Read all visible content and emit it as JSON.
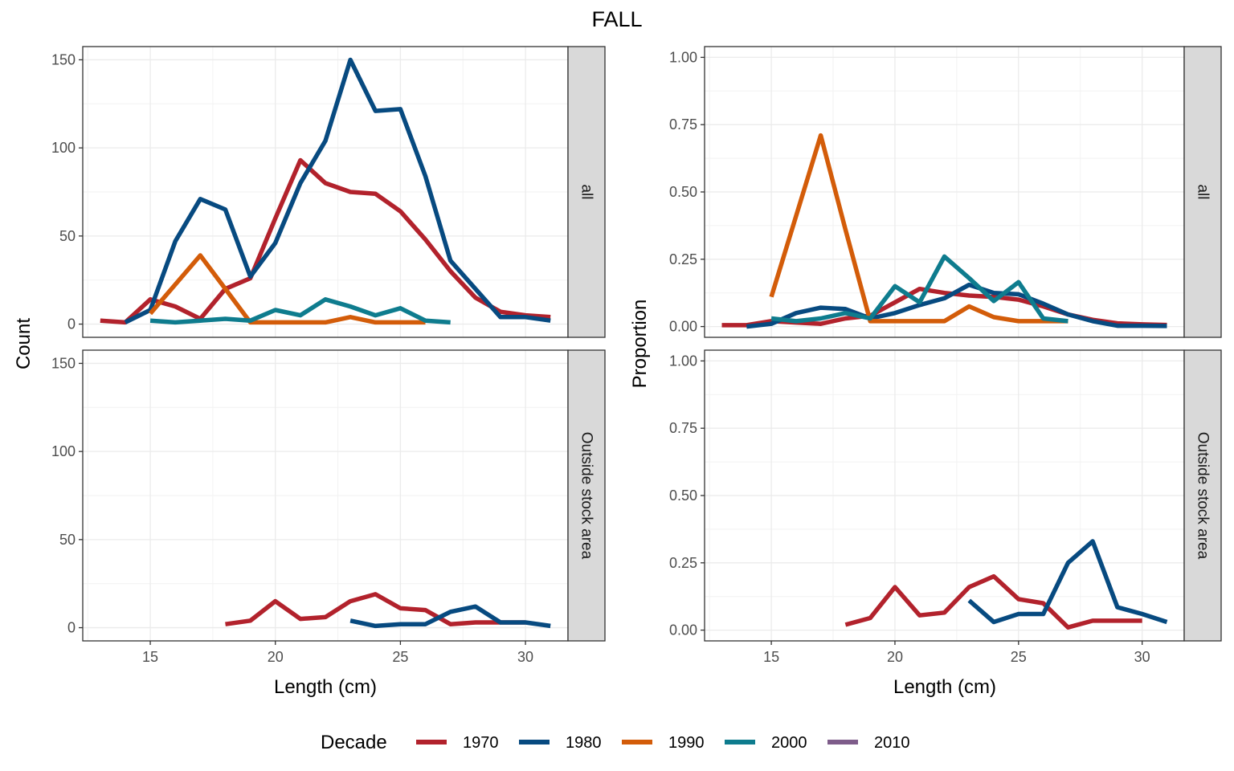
{
  "chart_data": {
    "type": "line",
    "title": "FALL",
    "facet_rows": [
      "all",
      "Outside stock area"
    ],
    "legend": {
      "title": "Decade",
      "position": "bottom",
      "entries": [
        {
          "name": "1970",
          "color": "#B2222C"
        },
        {
          "name": "1980",
          "color": "#074A80"
        },
        {
          "name": "1990",
          "color": "#D35C09"
        },
        {
          "name": "2000",
          "color": "#0E7C8E"
        },
        {
          "name": "2010",
          "color": "#7E5C8A"
        }
      ]
    },
    "panels": [
      {
        "id": "count",
        "xlabel": "Length (cm)",
        "ylabel": "Count",
        "xlim": [
          12.3,
          31.7
        ],
        "ylim": [
          -7.5,
          157.5
        ],
        "xticks": [
          "15",
          "20",
          "25",
          "30"
        ],
        "yticks": [
          "0",
          "50",
          "100",
          "150"
        ],
        "facets": {
          "all": [
            {
              "name": "1970",
              "x": [
                13,
                14,
                15,
                16,
                17,
                18,
                19,
                20,
                21,
                22,
                23,
                24,
                25,
                26,
                27,
                28,
                29,
                30,
                31
              ],
              "y": [
                2,
                1,
                14,
                10,
                3,
                20,
                26,
                60,
                93,
                80,
                75,
                74,
                64,
                48,
                30,
                15,
                7,
                5,
                4
              ]
            },
            {
              "name": "1980",
              "x": [
                14,
                15,
                16,
                17,
                18,
                19,
                20,
                21,
                22,
                23,
                24,
                25,
                26,
                27,
                28,
                29,
                30,
                31
              ],
              "y": [
                1,
                8,
                47,
                71,
                65,
                27,
                46,
                80,
                104,
                150,
                121,
                122,
                84,
                36,
                20,
                4,
                4,
                2
              ]
            },
            {
              "name": "1990",
              "x": [
                15,
                17,
                18,
                19,
                20,
                21,
                22,
                23,
                24,
                25,
                26
              ],
              "y": [
                6,
                39,
                20,
                1,
                1,
                1,
                1,
                4,
                1,
                1,
                1
              ]
            },
            {
              "name": "2000",
              "x": [
                15,
                16,
                17,
                18,
                19,
                20,
                21,
                22,
                23,
                24,
                25,
                26,
                27
              ],
              "y": [
                2,
                1,
                2,
                3,
                2,
                8,
                5,
                14,
                10,
                5,
                9,
                2,
                1
              ]
            }
          ],
          "Outside stock area": [
            {
              "name": "1970",
              "x": [
                18,
                19,
                20,
                21,
                22,
                23,
                24,
                25,
                26,
                27,
                28,
                29,
                30
              ],
              "y": [
                2,
                4,
                15,
                5,
                6,
                15,
                19,
                11,
                10,
                2,
                3,
                3,
                3
              ]
            },
            {
              "name": "1980",
              "x": [
                23,
                24,
                25,
                26,
                27,
                28,
                29,
                30,
                31
              ],
              "y": [
                4,
                1,
                2,
                2,
                9,
                12,
                3,
                3,
                1
              ]
            }
          ]
        }
      },
      {
        "id": "proportion",
        "xlabel": "Length (cm)",
        "ylabel": "Proportion",
        "xlim": [
          12.3,
          31.7
        ],
        "ylim": [
          -0.04,
          1.04
        ],
        "xticks": [
          "15",
          "20",
          "25",
          "30"
        ],
        "yticks": [
          "0.00",
          "0.25",
          "0.50",
          "0.75",
          "1.00"
        ],
        "facets": {
          "all": [
            {
              "name": "1970",
              "x": [
                13,
                14,
                15,
                16,
                17,
                18,
                19,
                20,
                21,
                22,
                23,
                24,
                25,
                26,
                27,
                28,
                29,
                30,
                31
              ],
              "y": [
                0.005,
                0.005,
                0.02,
                0.015,
                0.01,
                0.03,
                0.04,
                0.09,
                0.14,
                0.125,
                0.115,
                0.11,
                0.1,
                0.075,
                0.045,
                0.025,
                0.012,
                0.008,
                0.006
              ]
            },
            {
              "name": "1980",
              "x": [
                14,
                15,
                16,
                17,
                18,
                19,
                20,
                21,
                22,
                23,
                24,
                25,
                26,
                27,
                28,
                29,
                30,
                31
              ],
              "y": [
                0,
                0.01,
                0.05,
                0.07,
                0.065,
                0.03,
                0.05,
                0.08,
                0.105,
                0.155,
                0.125,
                0.12,
                0.085,
                0.045,
                0.02,
                0.003,
                0.003,
                0.002
              ]
            },
            {
              "name": "1990",
              "x": [
                15,
                17,
                18,
                19,
                20,
                21,
                22,
                23,
                24,
                25,
                26,
                27
              ],
              "y": [
                0.11,
                0.71,
                0.36,
                0.02,
                0.02,
                0.02,
                0.02,
                0.075,
                0.035,
                0.02,
                0.02,
                0.02
              ]
            },
            {
              "name": "2000",
              "x": [
                15,
                16,
                17,
                18,
                19,
                20,
                21,
                22,
                23,
                24,
                25,
                26,
                27
              ],
              "y": [
                0.03,
                0.02,
                0.03,
                0.05,
                0.03,
                0.15,
                0.09,
                0.26,
                0.18,
                0.095,
                0.165,
                0.03,
                0.02
              ]
            }
          ],
          "Outside stock area": [
            {
              "name": "1970",
              "x": [
                18,
                19,
                20,
                21,
                22,
                23,
                24,
                25,
                26,
                27,
                28,
                29,
                30
              ],
              "y": [
                0.02,
                0.045,
                0.16,
                0.055,
                0.065,
                0.16,
                0.2,
                0.115,
                0.1,
                0.01,
                0.035,
                0.035,
                0.035
              ]
            },
            {
              "name": "1980",
              "x": [
                23,
                24,
                25,
                26,
                27,
                28,
                29,
                30,
                31
              ],
              "y": [
                0.11,
                0.03,
                0.06,
                0.06,
                0.25,
                0.33,
                0.085,
                0.06,
                0.03
              ]
            }
          ]
        }
      }
    ]
  }
}
